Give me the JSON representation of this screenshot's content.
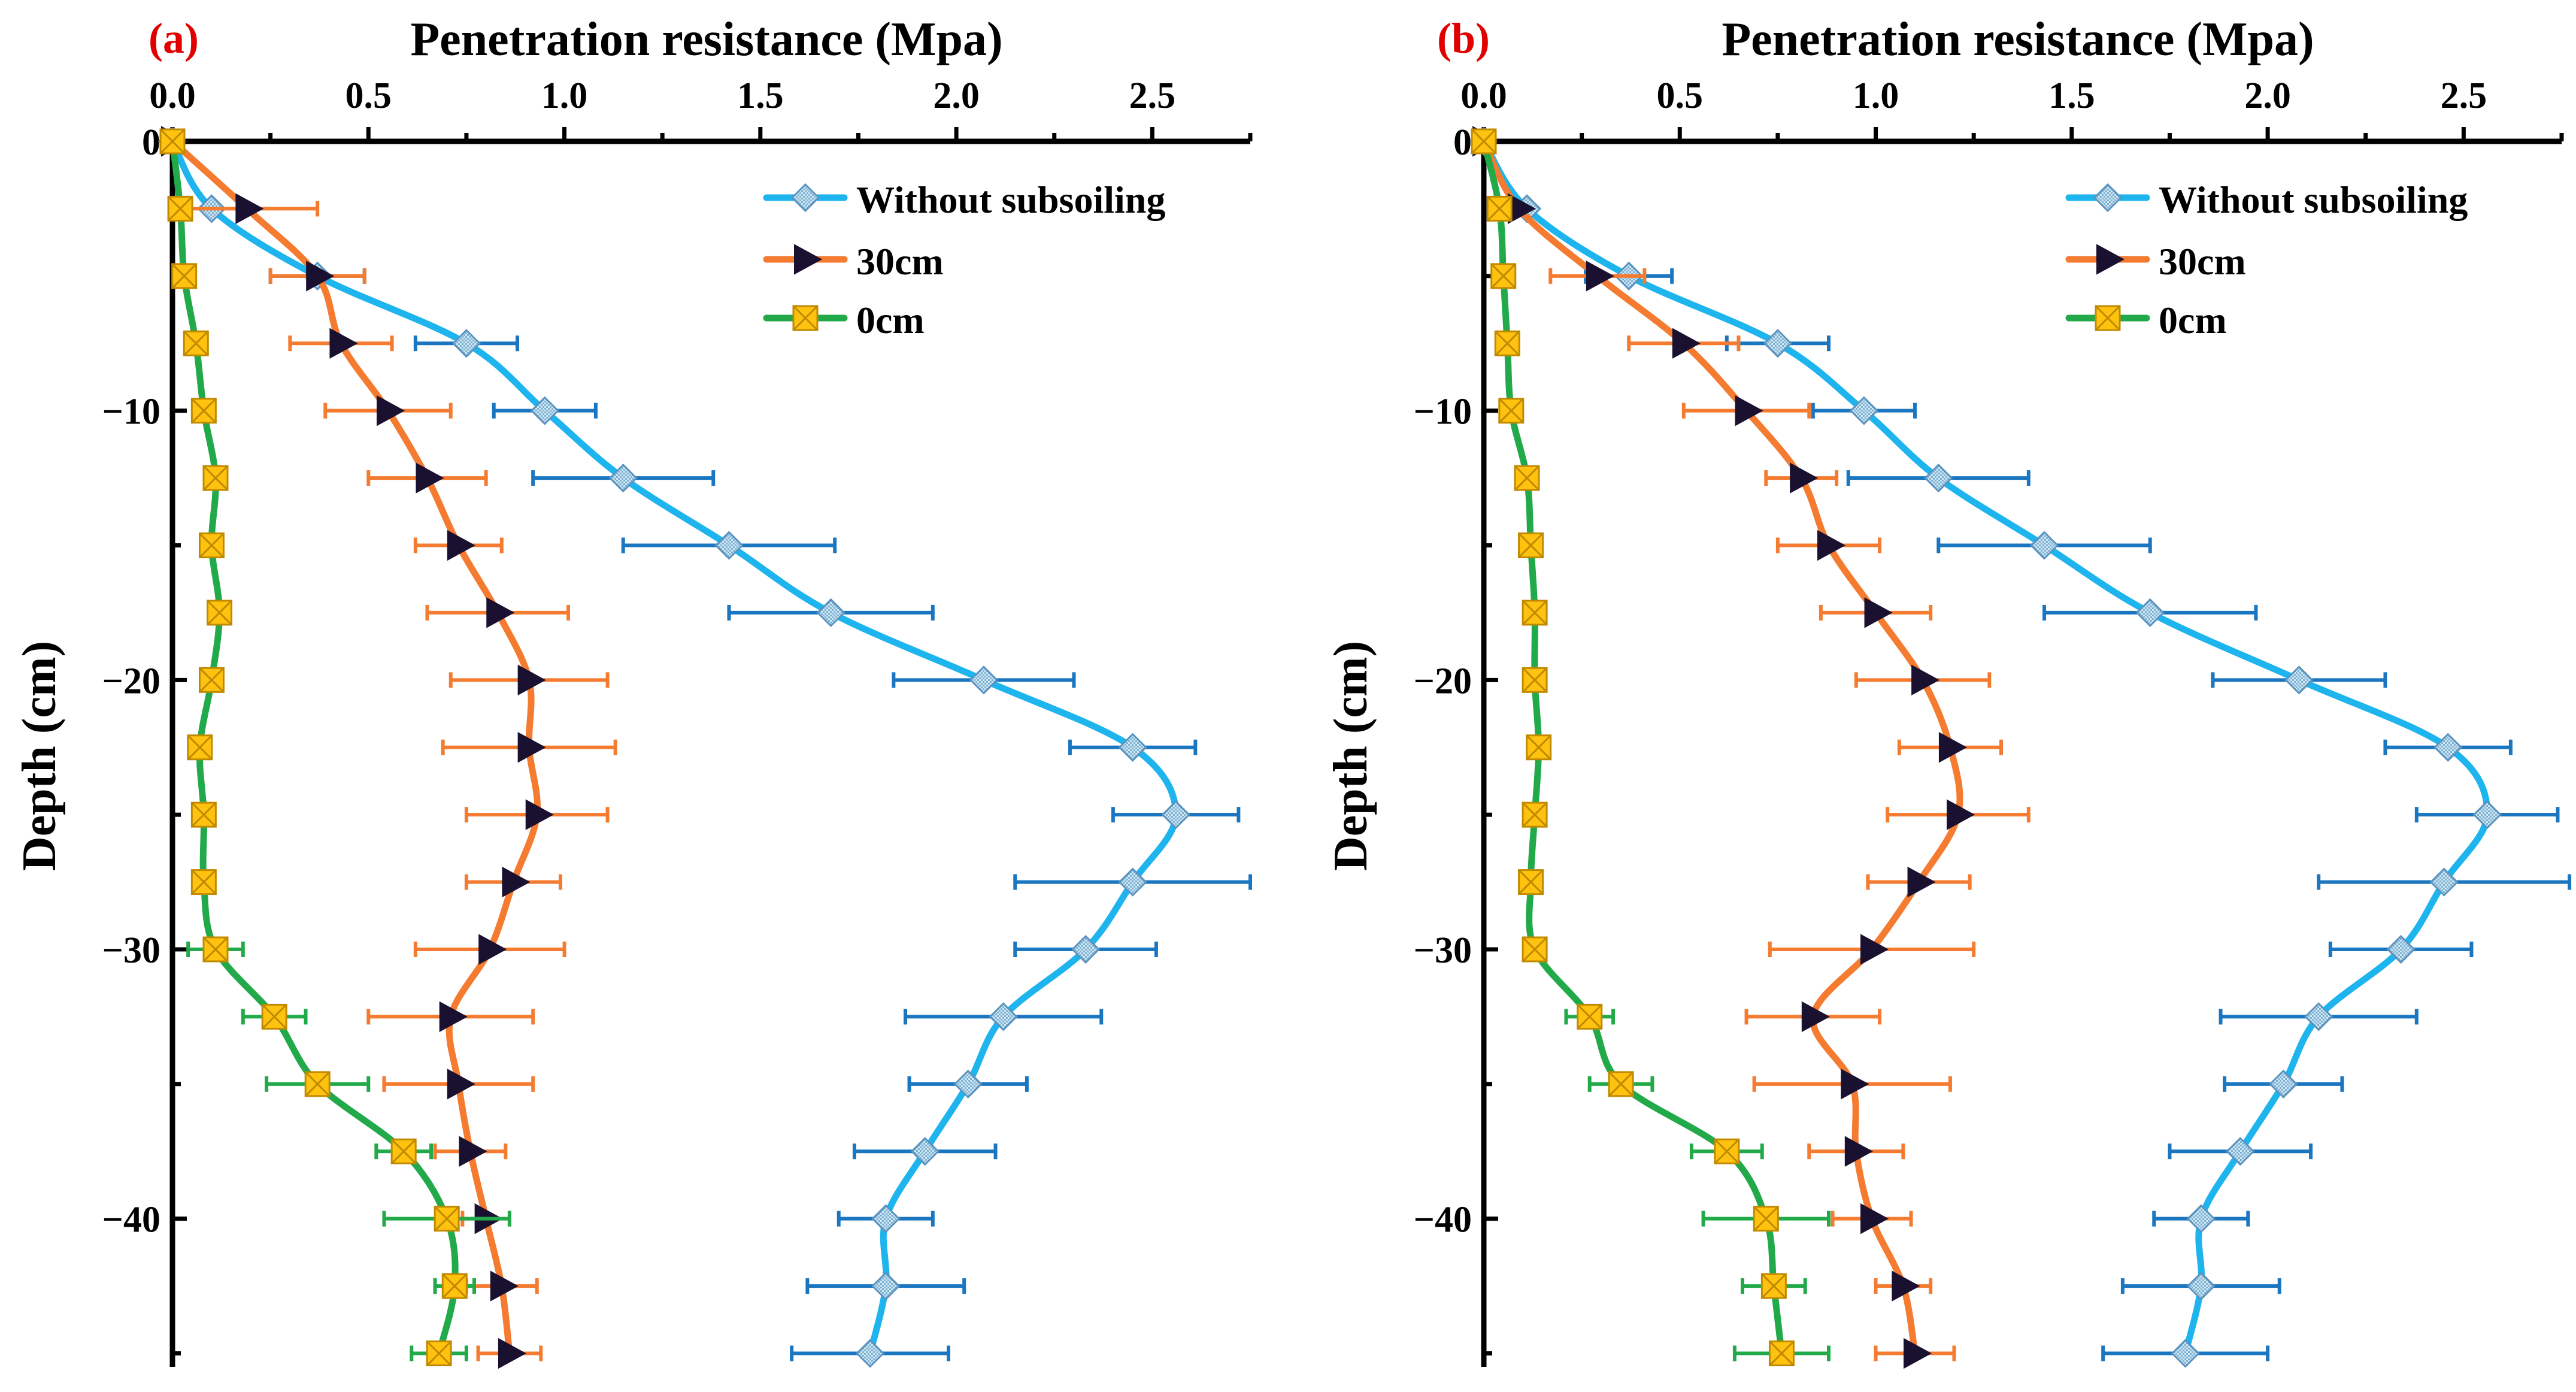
{
  "chart_data": [
    {
      "type": "line",
      "panel_label": "(a)",
      "xlabel": "Penetration resistance (Mpa)",
      "ylabel": "Depth (cm)",
      "xlim": [
        0,
        2.75
      ],
      "ylim": [
        -45.5,
        0
      ],
      "xticks": [
        0.0,
        0.5,
        1.0,
        1.5,
        2.0,
        2.5
      ],
      "xtick_labels": [
        "0.0",
        "0.5",
        "1.0",
        "1.5",
        "2.0",
        "2.5"
      ],
      "yticks": [
        0,
        -10,
        -20,
        -30,
        -40
      ],
      "ytick_labels": [
        "0",
        "−10",
        "−20",
        "−30",
        "−40"
      ],
      "legend_position": "top-right",
      "depth": [
        0,
        -2.5,
        -5,
        -7.5,
        -10,
        -12.5,
        -15,
        -17.5,
        -20,
        -22.5,
        -25,
        -27.5,
        -30,
        -32.5,
        -35,
        -37.5,
        -40,
        -42.5,
        -45
      ],
      "series": [
        {
          "name": "Without subsoiling",
          "color": "#1eb4ee",
          "errcolor": "#1a76c0",
          "marker": "diamond",
          "values": [
            0.0,
            0.1,
            0.37,
            0.75,
            0.95,
            1.15,
            1.42,
            1.68,
            2.07,
            2.45,
            2.56,
            2.45,
            2.33,
            2.12,
            2.03,
            1.92,
            1.82,
            1.82,
            1.78
          ],
          "errors": [
            0,
            0,
            0.12,
            0.13,
            0.13,
            0.23,
            0.27,
            0.26,
            0.23,
            0.16,
            0.16,
            0.3,
            0.18,
            0.25,
            0.15,
            0.18,
            0.12,
            0.2,
            0.2
          ]
        },
        {
          "name": "30cm",
          "color": "#f47b30",
          "errcolor": "#f47b30",
          "marker": "triangle",
          "values": [
            0.0,
            0.19,
            0.37,
            0.43,
            0.55,
            0.65,
            0.73,
            0.83,
            0.91,
            0.91,
            0.93,
            0.87,
            0.81,
            0.71,
            0.73,
            0.76,
            0.8,
            0.84,
            0.86
          ],
          "errors": [
            0,
            0.18,
            0.12,
            0.13,
            0.16,
            0.15,
            0.11,
            0.18,
            0.2,
            0.22,
            0.18,
            0.12,
            0.19,
            0.21,
            0.19,
            0.09,
            0.06,
            0.09,
            0.08
          ]
        },
        {
          "name": "0cm",
          "color": "#22aa4a",
          "errcolor": "#22aa4a",
          "marker": "square",
          "values": [
            0.0,
            0.02,
            0.03,
            0.06,
            0.08,
            0.11,
            0.1,
            0.12,
            0.1,
            0.07,
            0.08,
            0.08,
            0.11,
            0.26,
            0.37,
            0.59,
            0.7,
            0.72,
            0.68
          ],
          "errors": [
            0,
            0,
            0,
            0,
            0,
            0.02,
            0,
            0.02,
            0.02,
            0,
            0,
            0,
            0.07,
            0.08,
            0.13,
            0.07,
            0.16,
            0.05,
            0.07
          ]
        }
      ]
    },
    {
      "type": "line",
      "panel_label": "(b)",
      "xlabel": "Penetration resistance (Mpa)",
      "ylabel": "Depth (cm)",
      "xlim": [
        0,
        2.75
      ],
      "ylim": [
        -45.5,
        0
      ],
      "xticks": [
        0.0,
        0.5,
        1.0,
        1.5,
        2.0,
        2.5
      ],
      "xtick_labels": [
        "0.0",
        "0.5",
        "1.0",
        "1.5",
        "2.0",
        "2.5"
      ],
      "yticks": [
        0,
        -10,
        -20,
        -30,
        -40
      ],
      "ytick_labels": [
        "0",
        "−10",
        "−20",
        "−30",
        "−40"
      ],
      "legend_position": "top-right",
      "depth": [
        0,
        -2.5,
        -5,
        -7.5,
        -10,
        -12.5,
        -15,
        -17.5,
        -20,
        -22.5,
        -25,
        -27.5,
        -30,
        -32.5,
        -35,
        -37.5,
        -40,
        -42.5,
        -45
      ],
      "series": [
        {
          "name": "Without subsoiling",
          "color": "#1eb4ee",
          "errcolor": "#1a76c0",
          "marker": "diamond",
          "values": [
            0.0,
            0.11,
            0.37,
            0.75,
            0.97,
            1.16,
            1.43,
            1.7,
            2.08,
            2.46,
            2.56,
            2.45,
            2.34,
            2.13,
            2.04,
            1.93,
            1.83,
            1.83,
            1.79
          ],
          "errors": [
            0,
            0,
            0.11,
            0.13,
            0.13,
            0.23,
            0.27,
            0.27,
            0.22,
            0.16,
            0.18,
            0.32,
            0.18,
            0.25,
            0.15,
            0.18,
            0.12,
            0.2,
            0.21
          ]
        },
        {
          "name": "30cm",
          "color": "#f47b30",
          "errcolor": "#f47b30",
          "marker": "triangle",
          "values": [
            0.0,
            0.09,
            0.29,
            0.51,
            0.67,
            0.81,
            0.88,
            1.0,
            1.12,
            1.19,
            1.21,
            1.11,
            0.99,
            0.84,
            0.94,
            0.95,
            0.99,
            1.07,
            1.1
          ],
          "errors": [
            0,
            0,
            0.12,
            0.14,
            0.16,
            0.09,
            0.13,
            0.14,
            0.17,
            0.13,
            0.18,
            0.13,
            0.26,
            0.17,
            0.25,
            0.12,
            0.1,
            0.07,
            0.1
          ]
        },
        {
          "name": "0cm",
          "color": "#22aa4a",
          "errcolor": "#22aa4a",
          "marker": "square",
          "values": [
            0.0,
            0.04,
            0.05,
            0.06,
            0.07,
            0.11,
            0.12,
            0.13,
            0.13,
            0.14,
            0.13,
            0.12,
            0.13,
            0.27,
            0.35,
            0.62,
            0.72,
            0.74,
            0.76
          ],
          "errors": [
            0,
            0,
            0,
            0,
            0,
            0,
            0,
            0,
            0.02,
            0,
            0,
            0.02,
            0,
            0.06,
            0.08,
            0.09,
            0.16,
            0.08,
            0.12
          ]
        }
      ]
    }
  ]
}
